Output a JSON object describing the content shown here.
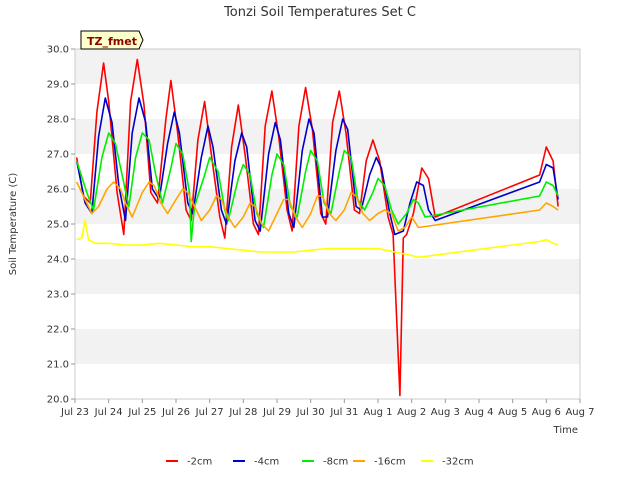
{
  "chart_data": {
    "type": "line",
    "title": "Tonzi Soil Temperatures Set C",
    "xlabel": "Time",
    "ylabel": "Soil Temperature (C)",
    "ylim": [
      20.0,
      30.0
    ],
    "xlim": [
      0,
      15
    ],
    "grid": "horizontal-bands",
    "legend_position": "bottom-center",
    "annotation": "TZ_fmet",
    "y_ticks": [
      "20.0",
      "21.0",
      "22.0",
      "23.0",
      "24.0",
      "25.0",
      "26.0",
      "27.0",
      "28.0",
      "29.0",
      "30.0"
    ],
    "x_tick_labels": [
      "Jul 23",
      "Jul 24",
      "Jul 25",
      "Jul 26",
      "Jul 27",
      "Jul 28",
      "Jul 29",
      "Jul 30",
      "Jul 31",
      "Aug 1",
      "Aug 2",
      "Aug 3",
      "Aug 4",
      "Aug 5",
      "Aug 6",
      "Aug 7"
    ],
    "x_tick_values": [
      0,
      1,
      2,
      3,
      4,
      5,
      6,
      7,
      8,
      9,
      10,
      11,
      12,
      13,
      14,
      15
    ],
    "x_unit_note": "x values are in days on the date axis, Jul 23 = 0",
    "series": [
      {
        "name": "-2cm",
        "color": "#ff0000",
        "x": [
          0.05,
          0.25,
          0.45,
          0.65,
          0.85,
          1.0,
          1.25,
          1.45,
          1.65,
          1.85,
          2.05,
          2.25,
          2.45,
          2.7,
          2.85,
          3.05,
          3.3,
          3.45,
          3.65,
          3.85,
          4.05,
          4.3,
          4.45,
          4.65,
          4.85,
          5.05,
          5.3,
          5.45,
          5.65,
          5.85,
          6.05,
          6.3,
          6.45,
          6.65,
          6.85,
          7.05,
          7.3,
          7.45,
          7.65,
          7.85,
          8.05,
          8.3,
          8.45,
          8.65,
          8.85,
          9.05,
          9.3,
          9.45,
          9.65,
          9.75,
          9.85,
          10.05,
          10.3,
          10.5,
          10.7,
          13.8,
          14.0,
          14.2,
          14.35
        ],
        "y": [
          26.9,
          25.8,
          25.6,
          28.2,
          29.6,
          28.5,
          25.9,
          24.7,
          28.5,
          29.7,
          28.4,
          25.9,
          25.6,
          28.0,
          29.1,
          27.6,
          25.4,
          25.1,
          27.4,
          28.5,
          27.0,
          25.2,
          24.6,
          27.2,
          28.4,
          27.0,
          25.0,
          24.7,
          27.8,
          28.8,
          27.5,
          25.4,
          24.8,
          27.8,
          28.9,
          27.7,
          25.3,
          25.0,
          27.9,
          28.8,
          27.6,
          25.4,
          25.3,
          26.8,
          27.4,
          26.8,
          25.2,
          24.7,
          20.1,
          24.6,
          24.7,
          25.3,
          26.6,
          26.3,
          25.2,
          26.4,
          27.2,
          26.8,
          25.5
        ]
      },
      {
        "name": "-4cm",
        "color": "#0000cc",
        "x": [
          0.05,
          0.3,
          0.5,
          0.7,
          0.9,
          1.1,
          1.3,
          1.5,
          1.7,
          1.9,
          2.1,
          2.3,
          2.5,
          2.75,
          2.95,
          3.1,
          3.35,
          3.5,
          3.75,
          3.95,
          4.1,
          4.35,
          4.5,
          4.75,
          4.95,
          5.1,
          5.35,
          5.5,
          5.75,
          5.95,
          6.1,
          6.35,
          6.5,
          6.75,
          6.95,
          7.1,
          7.35,
          7.5,
          7.75,
          7.95,
          8.1,
          8.35,
          8.5,
          8.75,
          8.95,
          9.1,
          9.35,
          9.5,
          9.75,
          9.95,
          10.15,
          10.35,
          10.5,
          10.7,
          13.8,
          14.0,
          14.2,
          14.35
        ],
        "y": [
          26.8,
          25.6,
          25.3,
          27.5,
          28.6,
          27.9,
          26.1,
          25.1,
          27.6,
          28.6,
          27.9,
          26.0,
          25.7,
          27.3,
          28.2,
          27.6,
          25.6,
          25.3,
          26.9,
          27.8,
          27.2,
          25.4,
          25.0,
          26.8,
          27.6,
          27.2,
          25.1,
          24.8,
          27.0,
          27.9,
          27.4,
          25.3,
          24.9,
          27.1,
          28.0,
          27.6,
          25.2,
          25.2,
          27.1,
          28.0,
          27.7,
          25.5,
          25.4,
          26.4,
          26.9,
          26.6,
          25.3,
          24.7,
          24.8,
          25.6,
          26.2,
          26.1,
          25.4,
          25.1,
          26.2,
          26.7,
          26.6,
          25.7
        ]
      },
      {
        "name": "-8cm",
        "color": "#00ee00",
        "x": [
          0.05,
          0.35,
          0.55,
          0.8,
          1.0,
          1.2,
          1.4,
          1.6,
          1.8,
          2.0,
          2.2,
          2.4,
          2.6,
          2.85,
          3.0,
          3.2,
          3.4,
          3.45,
          3.55,
          3.85,
          4.0,
          4.25,
          4.45,
          4.55,
          4.85,
          5.0,
          5.2,
          5.4,
          5.6,
          5.85,
          6.0,
          6.2,
          6.4,
          6.6,
          6.85,
          7.0,
          7.2,
          7.4,
          7.6,
          7.85,
          8.0,
          8.2,
          8.4,
          8.6,
          8.85,
          9.0,
          9.2,
          9.4,
          9.6,
          9.85,
          10.05,
          10.2,
          10.4,
          13.8,
          14.0,
          14.2,
          14.35
        ],
        "y": [
          26.8,
          25.9,
          25.4,
          26.9,
          27.6,
          27.3,
          26.4,
          25.5,
          26.9,
          27.6,
          27.4,
          26.4,
          25.6,
          26.6,
          27.3,
          27.0,
          25.9,
          24.5,
          25.5,
          26.4,
          26.9,
          26.5,
          25.4,
          25.1,
          26.3,
          26.7,
          26.4,
          25.3,
          24.9,
          26.4,
          27.0,
          26.7,
          25.5,
          25.2,
          26.5,
          27.1,
          26.8,
          25.6,
          25.3,
          26.5,
          27.1,
          26.9,
          25.7,
          25.4,
          25.9,
          26.3,
          26.1,
          25.4,
          25.0,
          25.3,
          25.7,
          25.6,
          25.2,
          25.8,
          26.2,
          26.1,
          25.8
        ]
      },
      {
        "name": "-16cm",
        "color": "#ffa500",
        "x": [
          0.05,
          0.3,
          0.5,
          0.7,
          0.95,
          1.15,
          1.35,
          1.5,
          1.7,
          2.0,
          2.2,
          2.35,
          2.55,
          2.75,
          3.0,
          3.2,
          3.35,
          3.55,
          3.75,
          4.0,
          4.2,
          4.35,
          4.55,
          4.75,
          5.0,
          5.2,
          5.35,
          5.55,
          5.75,
          6.0,
          6.2,
          6.35,
          6.55,
          6.75,
          7.0,
          7.2,
          7.35,
          7.55,
          7.75,
          8.0,
          8.2,
          8.35,
          8.55,
          8.75,
          9.0,
          9.2,
          9.4,
          9.6,
          9.8,
          10.0,
          10.2,
          13.8,
          14.0,
          14.2,
          14.35
        ],
        "y": [
          26.2,
          25.7,
          25.3,
          25.5,
          26.0,
          26.2,
          26.0,
          25.6,
          25.2,
          25.9,
          26.2,
          26.1,
          25.6,
          25.3,
          25.7,
          26.0,
          25.9,
          25.5,
          25.1,
          25.4,
          25.8,
          25.7,
          25.2,
          24.9,
          25.2,
          25.6,
          25.5,
          25.0,
          24.8,
          25.3,
          25.7,
          25.7,
          25.2,
          24.9,
          25.3,
          25.8,
          25.8,
          25.3,
          25.1,
          25.4,
          25.9,
          25.8,
          25.3,
          25.1,
          25.3,
          25.4,
          25.3,
          24.8,
          24.9,
          25.2,
          24.9,
          25.4,
          25.6,
          25.5,
          25.4
        ]
      },
      {
        "name": "-32cm",
        "color": "#ffff00",
        "x": [
          0.05,
          0.2,
          0.3,
          0.4,
          0.6,
          1.0,
          1.5,
          2.0,
          2.5,
          3.0,
          3.5,
          4.0,
          4.5,
          5.0,
          5.5,
          6.0,
          6.5,
          7.0,
          7.5,
          8.0,
          8.5,
          9.0,
          9.5,
          10.0,
          10.2,
          13.8,
          14.0,
          14.2,
          14.35
        ],
        "y": [
          24.55,
          24.6,
          25.1,
          24.55,
          24.45,
          24.45,
          24.4,
          24.4,
          24.45,
          24.4,
          24.35,
          24.35,
          24.3,
          24.25,
          24.2,
          24.2,
          24.2,
          24.25,
          24.3,
          24.3,
          24.3,
          24.3,
          24.2,
          24.1,
          24.05,
          24.5,
          24.55,
          24.45,
          24.4
        ]
      }
    ]
  }
}
